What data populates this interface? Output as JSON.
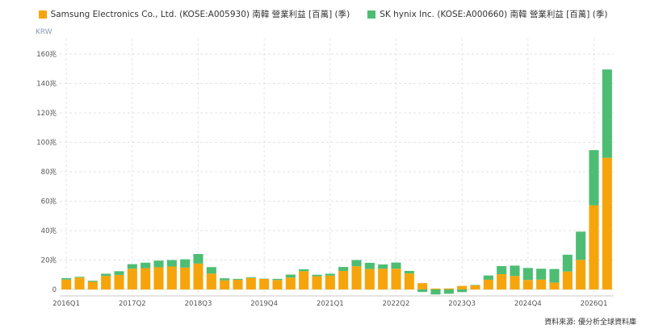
{
  "chart_data": {
    "type": "bar",
    "stacked": true,
    "unit": "KRW",
    "source": "資料來源: 優分析全球資料庫",
    "colors": {
      "samsung": "#f5a50b",
      "hynix": "#4dbd74",
      "grid": "#e3e3e3"
    },
    "ylim": [
      0,
      160
    ],
    "y_ticks": [
      {
        "v": 0,
        "label": "0"
      },
      {
        "v": 20,
        "label": "20兆"
      },
      {
        "v": 40,
        "label": "40兆"
      },
      {
        "v": 60,
        "label": "60兆"
      },
      {
        "v": 80,
        "label": "80兆"
      },
      {
        "v": 100,
        "label": "100兆"
      },
      {
        "v": 120,
        "label": "120兆"
      },
      {
        "v": 140,
        "label": "140兆"
      },
      {
        "v": 160,
        "label": "160兆"
      }
    ],
    "x_tick_labels": [
      "2016Q1",
      "2017Q2",
      "2018Q3",
      "2019Q4",
      "2021Q1",
      "2022Q2",
      "2023Q3",
      "2024Q4",
      "2026Q1"
    ],
    "categories": [
      "2016Q1",
      "2016Q2",
      "2016Q3",
      "2016Q4",
      "2017Q1",
      "2017Q2",
      "2017Q3",
      "2017Q4",
      "2018Q1",
      "2018Q2",
      "2018Q3",
      "2018Q4",
      "2019Q1",
      "2019Q2",
      "2019Q3",
      "2019Q4",
      "2020Q1",
      "2020Q2",
      "2020Q3",
      "2020Q4",
      "2021Q1",
      "2021Q2",
      "2021Q3",
      "2021Q4",
      "2022Q1",
      "2022Q2",
      "2022Q3",
      "2022Q4",
      "2023Q1",
      "2023Q2",
      "2023Q3",
      "2023Q4",
      "2024Q1",
      "2024Q2",
      "2024Q3",
      "2024Q4",
      "2025Q1",
      "2025Q2",
      "2025Q3",
      "2025Q4",
      "2026Q1",
      "2026Q2"
    ],
    "series": [
      {
        "name": "Samsung Electronics Co., Ltd. (KOSE:A005930) 南韓 營業利益 [百萬] (季)",
        "color": "#f5a50b",
        "values": [
          6.7,
          8.1,
          5.2,
          9.2,
          9.9,
          14.1,
          14.5,
          15.1,
          15.6,
          14.9,
          17.6,
          10.8,
          6.2,
          6.6,
          7.8,
          7.2,
          6.4,
          8.1,
          12.4,
          9.0,
          9.4,
          12.6,
          15.8,
          13.9,
          14.1,
          14.1,
          10.9,
          4.3,
          0.6,
          0.7,
          2.4,
          2.8,
          6.6,
          10.4,
          9.2,
          6.5,
          6.7,
          4.7,
          12.2,
          20.1,
          57.2,
          89.5
        ]
      },
      {
        "name": "SK hynix Inc. (KOSE:A000660) 南韓 營業利益 [百萬] (季)",
        "color": "#4dbd74",
        "values": [
          1.0,
          0.5,
          0.7,
          1.5,
          2.5,
          3.1,
          3.7,
          4.5,
          4.4,
          5.6,
          6.5,
          4.4,
          1.4,
          0.6,
          0.5,
          0.2,
          0.8,
          2.0,
          1.3,
          1.0,
          1.3,
          2.7,
          4.2,
          4.2,
          2.9,
          4.2,
          1.7,
          -1.7,
          -3.4,
          -2.9,
          -1.8,
          0.3,
          2.9,
          5.5,
          7.0,
          8.1,
          7.4,
          9.2,
          11.4,
          19.2,
          37.5,
          60.0
        ]
      }
    ]
  }
}
